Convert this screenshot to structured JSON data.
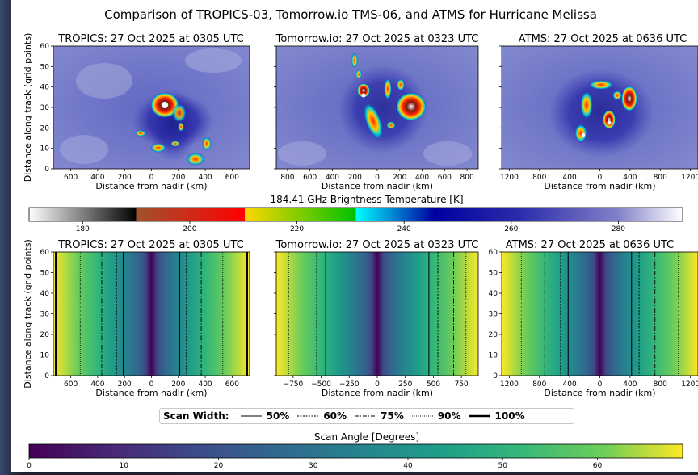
{
  "figure": {
    "title": "Comparison of TROPICS-03, Tomorrow.io TMS-06, and ATMS for Hurricane Melissa"
  },
  "colorbars": {
    "brightness": {
      "label": "184.41 GHz Brightness Temperature [K]",
      "range": [
        170,
        292
      ],
      "ticks": [
        180,
        200,
        220,
        240,
        260,
        280
      ],
      "colors": [
        "#ffffff",
        "#000000",
        "#a0522d",
        "#ff0000",
        "#ffd700",
        "#00c000",
        "#00ffff",
        "#0000a0",
        "#2b2baa",
        "#8080c8",
        "#ffffff"
      ]
    },
    "scan_angle": {
      "label": "Scan Angle [Degrees]",
      "range": [
        0,
        69
      ],
      "ticks": [
        0,
        10,
        20,
        30,
        40,
        50,
        60
      ]
    }
  },
  "legend": {
    "title": "Scan Width:",
    "items": [
      {
        "label": "50%",
        "style": "solid"
      },
      {
        "label": "60%",
        "style": "dashed"
      },
      {
        "label": "75%",
        "style": "dashdot"
      },
      {
        "label": "90%",
        "style": "dotted"
      },
      {
        "label": "100%",
        "style": "thick"
      }
    ]
  },
  "chart_data": [
    {
      "type": "heatmap",
      "panel": "tb-tropics",
      "title": "TROPICS: 27 Oct 2025 at 0305 UTC",
      "xlabel": "Distance from nadir (km)",
      "ylabel": "Distance along track (grid points)",
      "xlim": [
        -730,
        730
      ],
      "ylim": [
        0,
        60
      ],
      "xticks": [
        "600",
        "400",
        "200",
        "0",
        "200",
        "400",
        "600"
      ],
      "yticks": [
        0,
        10,
        20,
        30,
        40,
        50,
        60
      ]
    },
    {
      "type": "heatmap",
      "panel": "tb-tomorrow",
      "title": "Tomorrow.io: 27 Oct 2025 at 0323 UTC",
      "xlabel": "Distance from nadir (km)",
      "xlim": [
        -900,
        900
      ],
      "ylim": [
        0,
        60
      ],
      "xticks": [
        "800",
        "600",
        "400",
        "200",
        "0",
        "200",
        "400",
        "600",
        "800"
      ]
    },
    {
      "type": "heatmap",
      "panel": "tb-atms",
      "title": "ATMS: 27 Oct 2025 at 0636 UTC",
      "xlabel": "Distance from nadir (km)",
      "xlim": [
        -1300,
        1300
      ],
      "ylim": [
        0,
        60
      ],
      "xticks": [
        "1200",
        "800",
        "400",
        "0",
        "400",
        "800",
        "1200"
      ]
    },
    {
      "type": "heatmap",
      "panel": "sa-tropics",
      "title": "TROPICS: 27 Oct 2025 at 0305 UTC",
      "xlabel": "Distance from nadir (km)",
      "ylabel": "Distance along track (grid points)",
      "xlim": [
        -730,
        730
      ],
      "ylim": [
        0,
        60
      ],
      "xticks": [
        "600",
        "400",
        "200",
        "0",
        "200",
        "400",
        "600"
      ],
      "yticks": [
        0,
        10,
        20,
        30,
        40,
        50,
        60
      ],
      "max_edge": 710,
      "scan_lines": [
        {
          "x": 210,
          "style": "solid"
        },
        {
          "x": 260,
          "style": "dashed"
        },
        {
          "x": 370,
          "style": "dashdot"
        },
        {
          "x": 530,
          "style": "dotted"
        },
        {
          "x": 710,
          "style": "thick"
        }
      ]
    },
    {
      "type": "heatmap",
      "panel": "sa-tomorrow",
      "title": "Tomorrow.io: 27 Oct 2025 at 0323 UTC",
      "xlabel": "Distance from nadir (km)",
      "xlim": [
        -900,
        900
      ],
      "ylim": [
        0,
        60
      ],
      "xticks": [
        "−750",
        "−500",
        "−250",
        "0",
        "250",
        "500",
        "750"
      ],
      "max_edge": 830,
      "scan_lines": [
        {
          "x": 460,
          "style": "solid"
        },
        {
          "x": 540,
          "style": "dashed"
        },
        {
          "x": 680,
          "style": "dashdot"
        },
        {
          "x": 790,
          "style": "dotted"
        }
      ]
    },
    {
      "type": "heatmap",
      "panel": "sa-atms",
      "title": "ATMS: 27 Oct 2025 at 0636 UTC",
      "xlabel": "Distance from nadir (km)",
      "xlim": [
        -1300,
        1300
      ],
      "ylim": [
        0,
        60
      ],
      "xticks": [
        "1200",
        "800",
        "400",
        "0",
        "400",
        "800",
        "1200"
      ],
      "yticks": [
        0,
        10,
        20,
        30,
        40,
        50,
        60
      ],
      "max_edge": 1280,
      "scan_lines": [
        {
          "x": 420,
          "style": "solid"
        },
        {
          "x": 520,
          "style": "dashed"
        },
        {
          "x": 730,
          "style": "dashdot"
        },
        {
          "x": 1040,
          "style": "dotted"
        }
      ]
    }
  ]
}
